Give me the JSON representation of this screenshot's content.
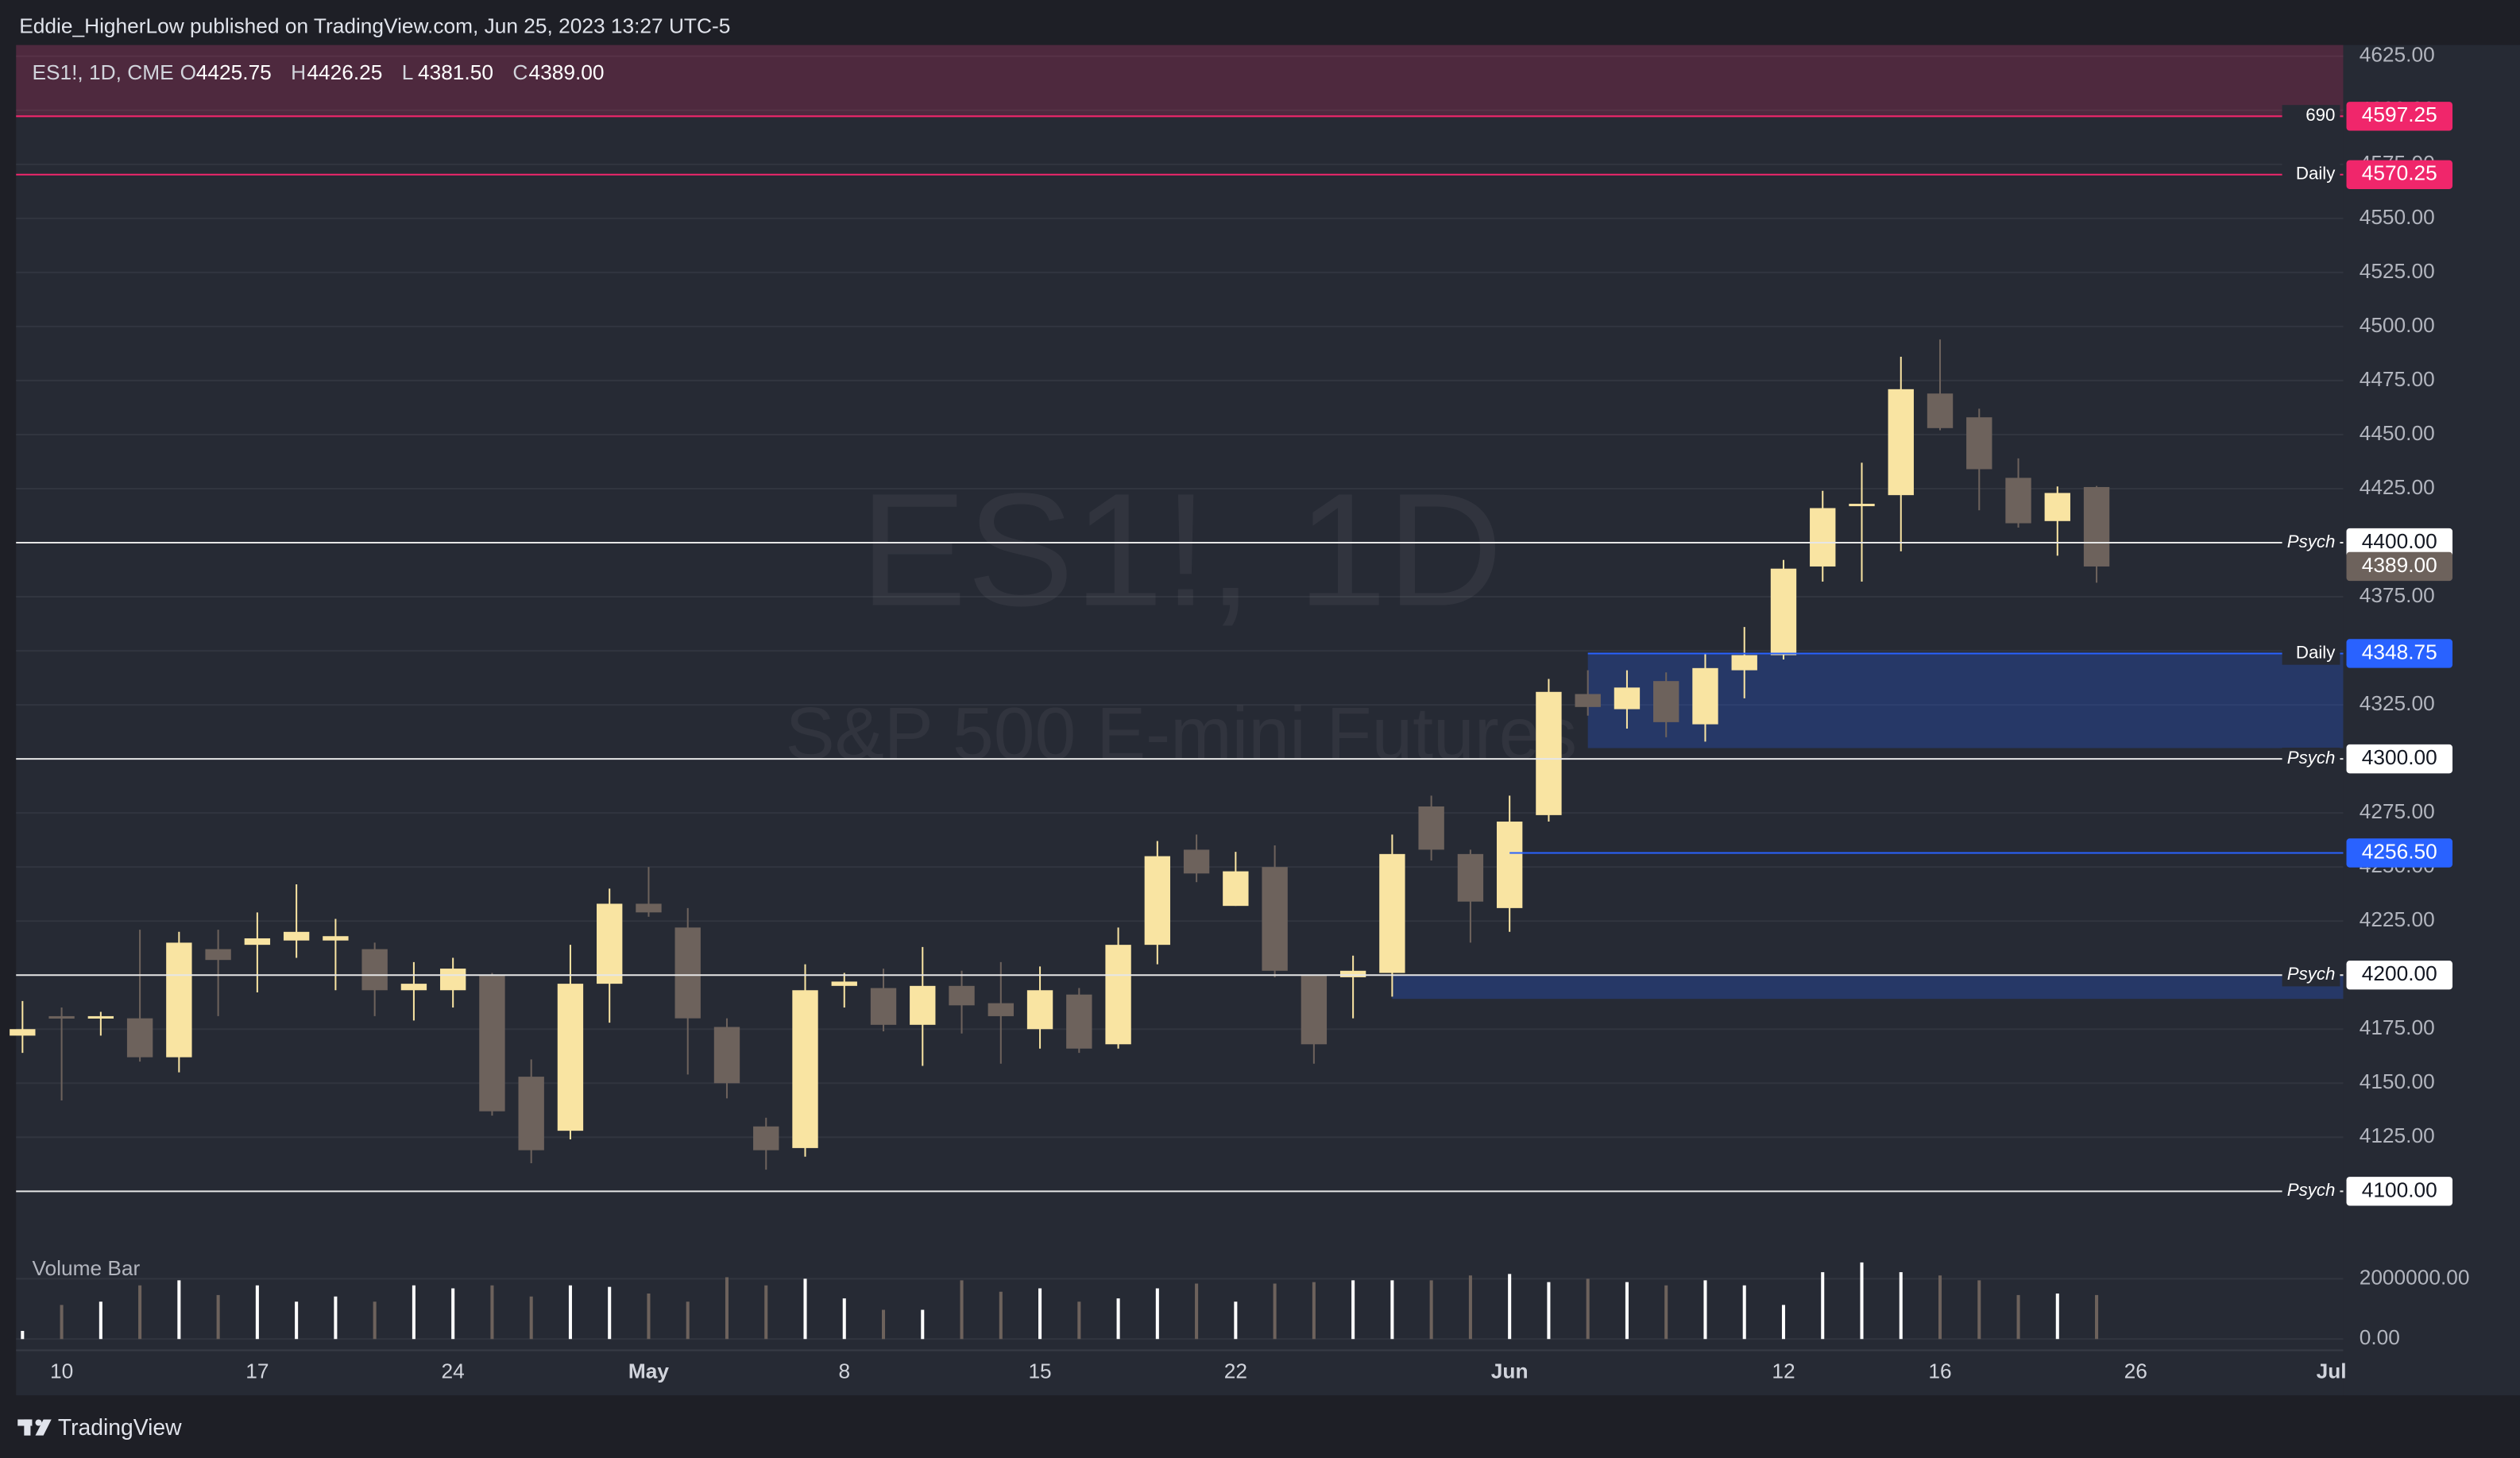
{
  "header": "Eddie_HigherLow published on TradingView.com, Jun 25, 2023 13:27 UTC-5",
  "footer": "TradingView",
  "chart_data": {
    "type": "candlestick",
    "symbol": "ES1!, 1D, CME",
    "legend": [
      [
        "O",
        "4425.75"
      ],
      [
        "H",
        "4426.25"
      ],
      [
        "L",
        "4381.50"
      ],
      [
        "C",
        "4389.00"
      ]
    ],
    "last_price": {
      "value": 4389,
      "label": "4389.00"
    },
    "watermark": [
      "ES1!, 1D",
      "S&P 500 E-mini Futures"
    ],
    "up_color": "#f9e4a2",
    "down_color": "#6d625c",
    "categories": [
      null,
      "10",
      null,
      null,
      null,
      null,
      "17",
      null,
      null,
      null,
      null,
      "24",
      null,
      null,
      null,
      null,
      "May",
      null,
      null,
      null,
      null,
      "8",
      null,
      null,
      null,
      null,
      "15",
      null,
      null,
      null,
      null,
      "22",
      null,
      null,
      null,
      null,
      null,
      null,
      "Jun",
      null,
      null,
      null,
      null,
      null,
      null,
      "12",
      null,
      null,
      null,
      "16",
      null,
      null,
      null,
      null,
      "26",
      null,
      null,
      null,
      null,
      "Jul"
    ],
    "open": [
      4172,
      4181,
      4180,
      4180,
      4162,
      4212,
      4214,
      4216,
      4216,
      4212,
      4193,
      4193,
      4200,
      4153,
      4128,
      4196,
      4233,
      4222,
      4176,
      4130,
      4120,
      4195,
      4194,
      4177,
      4195,
      4187,
      4175,
      4191,
      4168,
      4214,
      4258,
      4232,
      4250,
      4200,
      4199,
      4201,
      4278,
      4256,
      4231,
      4274,
      4330,
      4323,
      4336,
      4316,
      4341,
      4348,
      4389,
      4417,
      4422,
      4469,
      4458,
      4430,
      4410,
      4425.75,
      null,
      null,
      null,
      null,
      null,
      null
    ],
    "high": [
      4188,
      4185,
      4183,
      4221,
      4220,
      4221,
      4229,
      4242,
      4226,
      4215,
      4206,
      4208,
      4201,
      4161,
      4214,
      4240,
      4250,
      4231,
      4180,
      4134,
      4205,
      4201,
      4203,
      4213,
      4202,
      4206,
      4204,
      4194,
      4222,
      4262,
      4265,
      4257,
      4260,
      4200,
      4209,
      4265,
      4283,
      4258,
      4283,
      4337,
      4341,
      4341,
      4340,
      4349,
      4361,
      4392,
      4424,
      4437,
      4486,
      4494,
      4462,
      4439,
      4426,
      4426.25,
      null,
      null,
      null,
      null,
      null,
      null
    ],
    "low": [
      4164,
      4142,
      4172,
      4160,
      4155,
      4181,
      4192,
      4208,
      4193,
      4181,
      4179,
      4185,
      4135,
      4113,
      4124,
      4178,
      4227,
      4154,
      4143,
      4110,
      4116,
      4185,
      4174,
      4158,
      4173,
      4159,
      4166,
      4164,
      4166,
      4205,
      4243,
      4232,
      4199,
      4159,
      4180,
      4190,
      4253,
      4215,
      4220,
      4271,
      4320,
      4314,
      4310,
      4308,
      4328,
      4346,
      4382,
      4382,
      4396,
      4452,
      4415,
      4407,
      4394,
      4381.5,
      null,
      null,
      null,
      null,
      null,
      null
    ],
    "close": [
      4175,
      4180,
      4181,
      4162,
      4215,
      4207,
      4217,
      4220,
      4218,
      4193,
      4196,
      4203,
      4137,
      4119,
      4196,
      4233,
      4229,
      4180,
      4150,
      4119,
      4193,
      4197,
      4177,
      4195,
      4186,
      4181,
      4193,
      4166,
      4214,
      4255,
      4247,
      4248,
      4202,
      4168,
      4202,
      4256,
      4258,
      4234,
      4271,
      4331,
      4324,
      4333,
      4317,
      4342,
      4348,
      4388,
      4416,
      4418,
      4471,
      4453,
      4434,
      4409,
      4423,
      4389,
      null,
      null,
      null,
      null,
      null,
      null
    ],
    "ylim": [
      4078.5,
      4630.2
    ],
    "yticks": [
      {
        "value": 4100,
        "label": "4100.00"
      },
      {
        "value": 4125,
        "label": "4125.00"
      },
      {
        "value": 4150,
        "label": "4150.00"
      },
      {
        "value": 4175,
        "label": "4175.00"
      },
      {
        "value": 4200,
        "label": "4200.00"
      },
      {
        "value": 4225,
        "label": "4225.00"
      },
      {
        "value": 4250,
        "label": "4250.00"
      },
      {
        "value": 4275,
        "label": "4275.00"
      },
      {
        "value": 4300,
        "label": "4300.00"
      },
      {
        "value": 4325,
        "label": "4325.00"
      },
      {
        "value": 4350,
        "label": "4350.00"
      },
      {
        "value": 4375,
        "label": "4375.00"
      },
      {
        "value": 4400,
        "label": "4400.00"
      },
      {
        "value": 4425,
        "label": "4425.00"
      },
      {
        "value": 4450,
        "label": "4450.00"
      },
      {
        "value": 4475,
        "label": "4475.00"
      },
      {
        "value": 4500,
        "label": "4500.00"
      },
      {
        "value": 4525,
        "label": "4525.00"
      },
      {
        "value": 4550,
        "label": "4550.00"
      },
      {
        "value": 4575,
        "label": "4575.00"
      },
      {
        "value": 4600,
        "label": "4600.00"
      },
      {
        "value": 4625,
        "label": "4625.00"
      }
    ],
    "grid": true,
    "levels": [
      {
        "name": "690",
        "price": 4597.25,
        "color": "#f0266b"
      },
      {
        "name": "Daily",
        "price": 4570.25,
        "color": "#f0266b"
      },
      {
        "name": "Psych",
        "price": {
          "value": 4400,
          "label": "4400.00"
        },
        "color": "#ffffff"
      },
      {
        "name": "Daily",
        "price": 4348.75,
        "color": "#2962ff",
        "start": 40
      },
      {
        "name": "Psych",
        "price": {
          "value": 4300,
          "label": "4300.00"
        },
        "color": "#ffffff"
      },
      {
        "price": {
          "value": 4256.5,
          "label": "4256.50"
        },
        "color": "#2962ff",
        "start": 38
      },
      {
        "name": "Psych",
        "price": {
          "value": 4200,
          "label": "4200.00"
        },
        "color": "#ffffff"
      },
      {
        "name": "Psych",
        "price": {
          "value": 4100,
          "label": "4100.00"
        },
        "color": "#ffffff"
      }
    ],
    "zones": [
      {
        "bottom": 4597.25,
        "color": "#f0266b"
      },
      {
        "top": 4348.75,
        "bottom": 4305,
        "start": 40,
        "color": "#2962ff"
      },
      {
        "top": 4200,
        "bottom": 4189,
        "start": 35,
        "color": "#2962ff"
      }
    ],
    "volume": {
      "name": "Volume Bar",
      "values": [
        270000,
        1130000,
        1240000,
        1780000,
        1950000,
        1460000,
        1780000,
        1240000,
        1410000,
        1240000,
        1780000,
        1680000,
        1780000,
        1410000,
        1780000,
        1730000,
        1510000,
        1240000,
        2050000,
        1780000,
        2000000,
        1350000,
        970000,
        970000,
        1950000,
        1570000,
        1680000,
        1240000,
        1350000,
        1680000,
        1840000,
        1240000,
        1840000,
        1890000,
        1950000,
        1950000,
        1950000,
        2110000,
        2160000,
        1890000,
        2000000,
        1890000,
        1780000,
        1950000,
        1780000,
        1130000,
        2220000,
        2540000,
        2220000,
        2110000,
        1950000,
        1460000,
        1510000,
        1460000,
        null,
        null,
        null,
        null,
        null,
        null
      ],
      "ylim": [
        0,
        3200000
      ],
      "yticks": [
        {
          "value": 0,
          "label": "0.00"
        },
        {
          "value": 2000000,
          "label": "2000000.00"
        }
      ]
    }
  }
}
